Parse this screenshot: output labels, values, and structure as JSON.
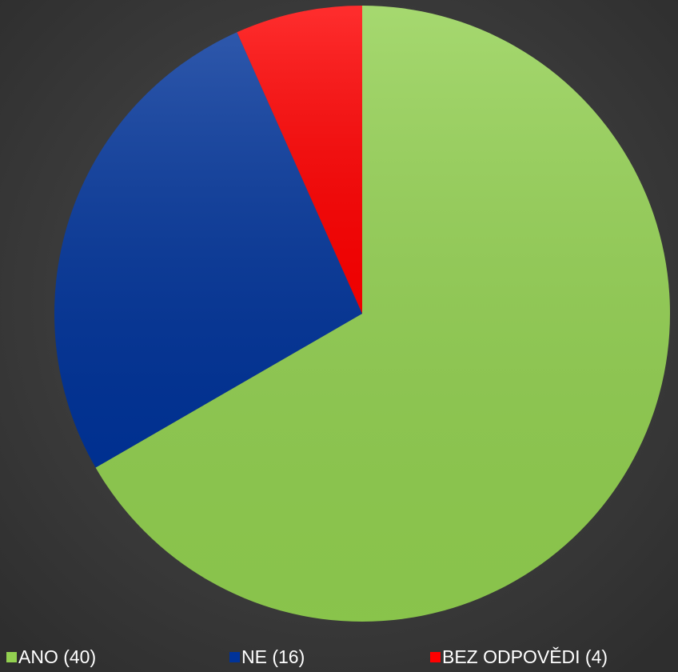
{
  "chart_data": {
    "type": "pie",
    "categories": [
      "ANO (40)",
      "NE (16)",
      "BEZ ODPOVĚDI (4)"
    ],
    "values": [
      40,
      16,
      4
    ],
    "colors": [
      "#92d050",
      "#003399",
      "#ff0000"
    ],
    "legend": "bottom"
  }
}
